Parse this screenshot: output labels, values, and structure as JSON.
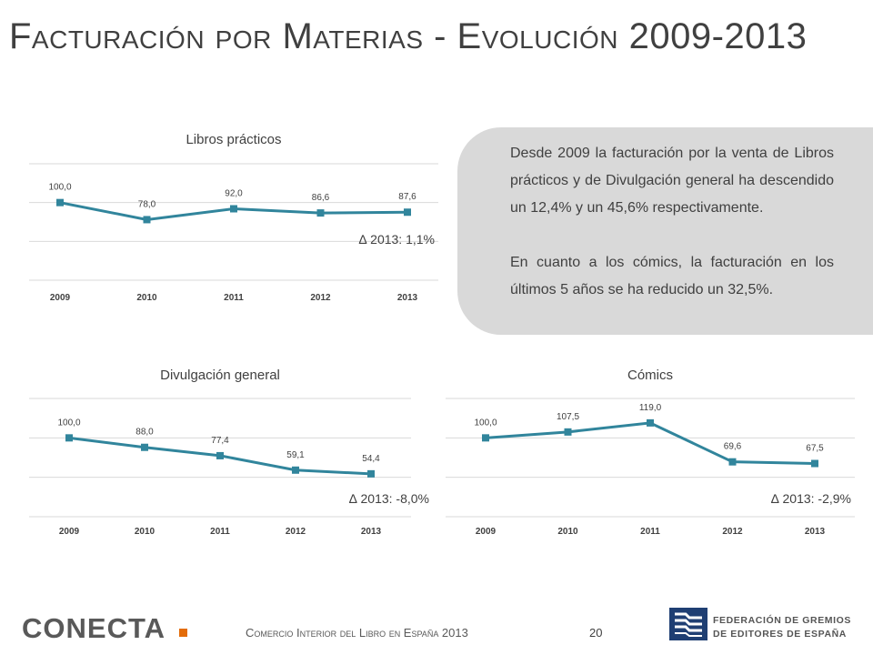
{
  "page": {
    "title": "Facturación por Materias - Evolución 2009-2013",
    "footer_text": "Comercio Interior del Libro en España 2013",
    "page_number": "20",
    "logo_left": "CONECTA",
    "logo_right_line1": "FEDERACIÓN DE GREMIOS",
    "logo_right_line2": "DE EDITORES DE ESPAÑA"
  },
  "textbox": {
    "paragraph1": "Desde 2009 la facturación por la venta de Libros prácticos y de Divulgación general ha descendido un 12,4% y un 45,6% respectivamente.",
    "paragraph2": "En cuanto a los cómics, la facturación en los últimos 5 años se ha reducido un 32,5%."
  },
  "colors": {
    "series": "#31859c",
    "grid": "#d9d9d9",
    "textbox_bg": "#d9d9d9"
  },
  "chart_data": [
    {
      "type": "line",
      "title": "Libros prácticos",
      "categories": [
        "2009",
        "2010",
        "2011",
        "2012",
        "2013"
      ],
      "values": [
        100.0,
        78.0,
        92.0,
        86.6,
        87.6
      ],
      "value_labels": [
        "100,0",
        "78,0",
        "92,0",
        "86,6",
        "87,6"
      ],
      "annotation": "∆ 2013: 1,1%",
      "ylim": [
        0,
        150
      ],
      "grid": true
    },
    {
      "type": "line",
      "title": "Divulgación general",
      "categories": [
        "2009",
        "2010",
        "2011",
        "2012",
        "2013"
      ],
      "values": [
        100.0,
        88.0,
        77.4,
        59.1,
        54.4
      ],
      "value_labels": [
        "100,0",
        "88,0",
        "77,4",
        "59,1",
        "54,4"
      ],
      "annotation": "∆ 2013: -8,0%",
      "ylim": [
        0,
        150
      ],
      "grid": true
    },
    {
      "type": "line",
      "title": "Cómics",
      "categories": [
        "2009",
        "2010",
        "2011",
        "2012",
        "2013"
      ],
      "values": [
        100.0,
        107.5,
        119.0,
        69.6,
        67.5
      ],
      "value_labels": [
        "100,0",
        "107,5",
        "119,0",
        "69,6",
        "67,5"
      ],
      "annotation": "∆ 2013: -2,9%",
      "ylim": [
        0,
        150
      ],
      "grid": true
    }
  ]
}
